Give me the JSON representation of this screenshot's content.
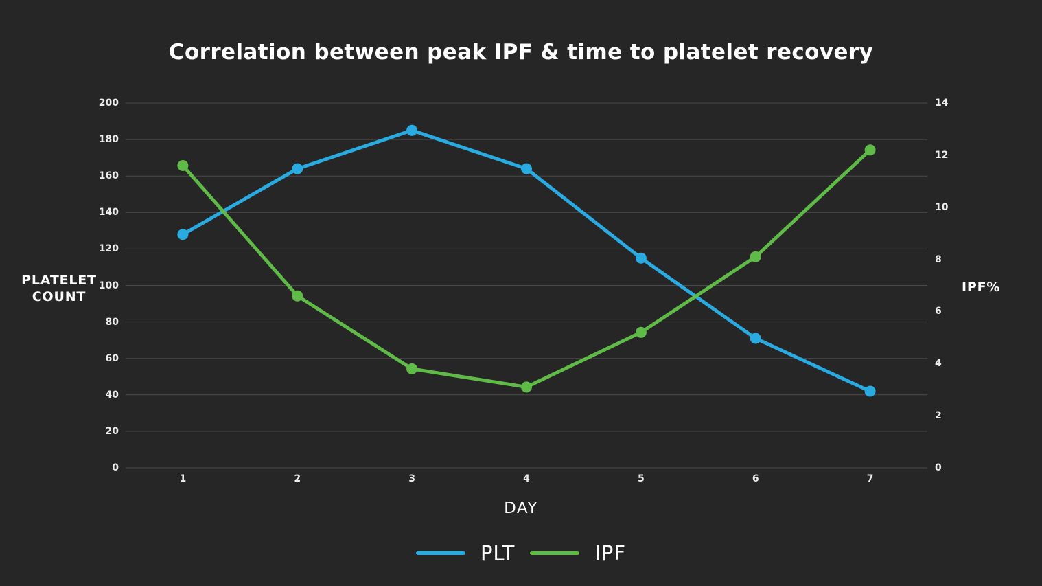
{
  "page": {
    "background": "#262626",
    "grid_color": "#4a4a4a"
  },
  "chart_data": {
    "type": "line",
    "title": "Correlation between peak IPF & time to platelet recovery",
    "xlabel": "DAY",
    "x": [
      1,
      2,
      3,
      4,
      5,
      6,
      7
    ],
    "left_axis": {
      "label": "PLATELET COUNT",
      "min": 0,
      "max": 200,
      "ticks": [
        0,
        20,
        40,
        60,
        80,
        100,
        120,
        140,
        160,
        180,
        200
      ]
    },
    "right_axis": {
      "label": "IPF%",
      "min": 0,
      "max": 14,
      "ticks": [
        0,
        2,
        4,
        6,
        8,
        10,
        12,
        14
      ]
    },
    "series": [
      {
        "name": "PLT",
        "axis": "left",
        "color": "#29abe2",
        "values": [
          128,
          164,
          185,
          164,
          115,
          71,
          42
        ]
      },
      {
        "name": "IPF",
        "axis": "right",
        "color": "#5fba47",
        "values": [
          11.6,
          6.6,
          3.8,
          3.1,
          5.2,
          8.1,
          12.2
        ]
      }
    ],
    "grid": true,
    "legend_position": "bottom"
  }
}
